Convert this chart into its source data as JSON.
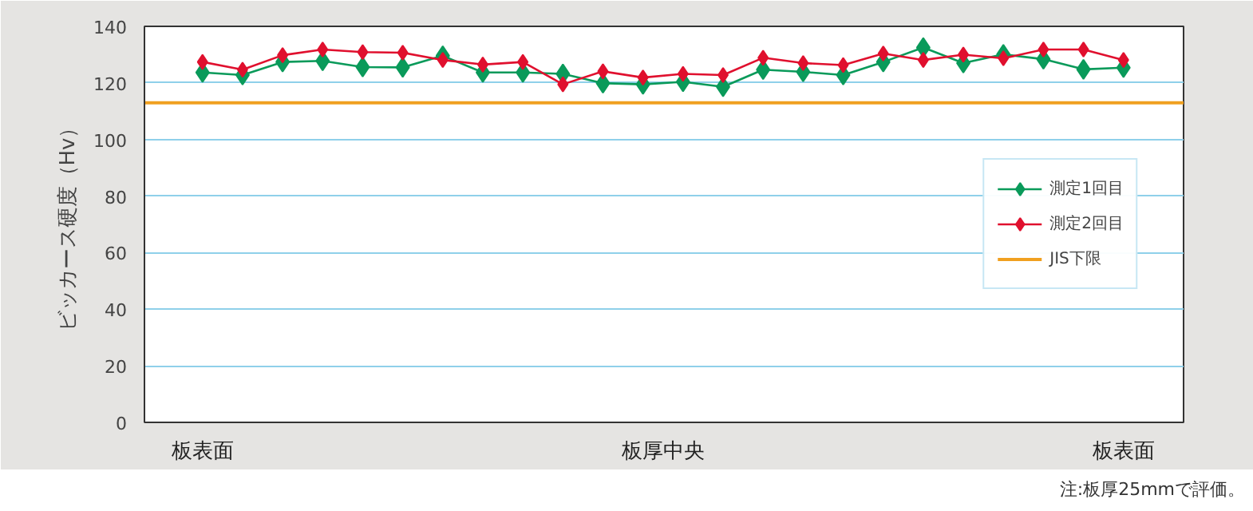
{
  "chart_data": {
    "type": "line",
    "ylabel": "ビッカース硬度（Hv）",
    "categories": [
      "板表面",
      null,
      null,
      null,
      null,
      null,
      null,
      null,
      null,
      null,
      null,
      null,
      null,
      null,
      null,
      null,
      null,
      null,
      null,
      null,
      null,
      null,
      null,
      "板表面"
    ],
    "ylim": [
      0,
      140
    ],
    "yticks": [
      0,
      20,
      40,
      60,
      80,
      100,
      120,
      140
    ],
    "series": [
      {
        "name": "測定1回目",
        "color": "#0a9a5a",
        "values": [
          123.7,
          122.8,
          127.4,
          127.8,
          125.6,
          125.5,
          129.6,
          123.7,
          123.7,
          123.2,
          119.9,
          119.5,
          120.4,
          118.6,
          124.7,
          123.9,
          122.8,
          127.4,
          132.5,
          127,
          130.1,
          128.4,
          124.8,
          125.4
        ]
      },
      {
        "name": "測定2回目",
        "color": "#e0102e",
        "values": [
          127.4,
          124.7,
          129.8,
          131.8,
          130.9,
          130.7,
          128.1,
          126.5,
          127.4,
          119.5,
          124.1,
          121.9,
          123.2,
          122.8,
          128.9,
          127,
          126.3,
          130.4,
          128.1,
          130,
          128.7,
          131.8,
          131.8,
          128.1
        ]
      }
    ],
    "ref_lines": [
      {
        "axis": "y",
        "value": 113,
        "label": "JIS下限",
        "color": "#f0a020"
      }
    ],
    "marker": "diamond",
    "grid": "y",
    "legend": "right",
    "annotations": [
      "板厚中央",
      "注:板厚25mmで評価。"
    ]
  }
}
